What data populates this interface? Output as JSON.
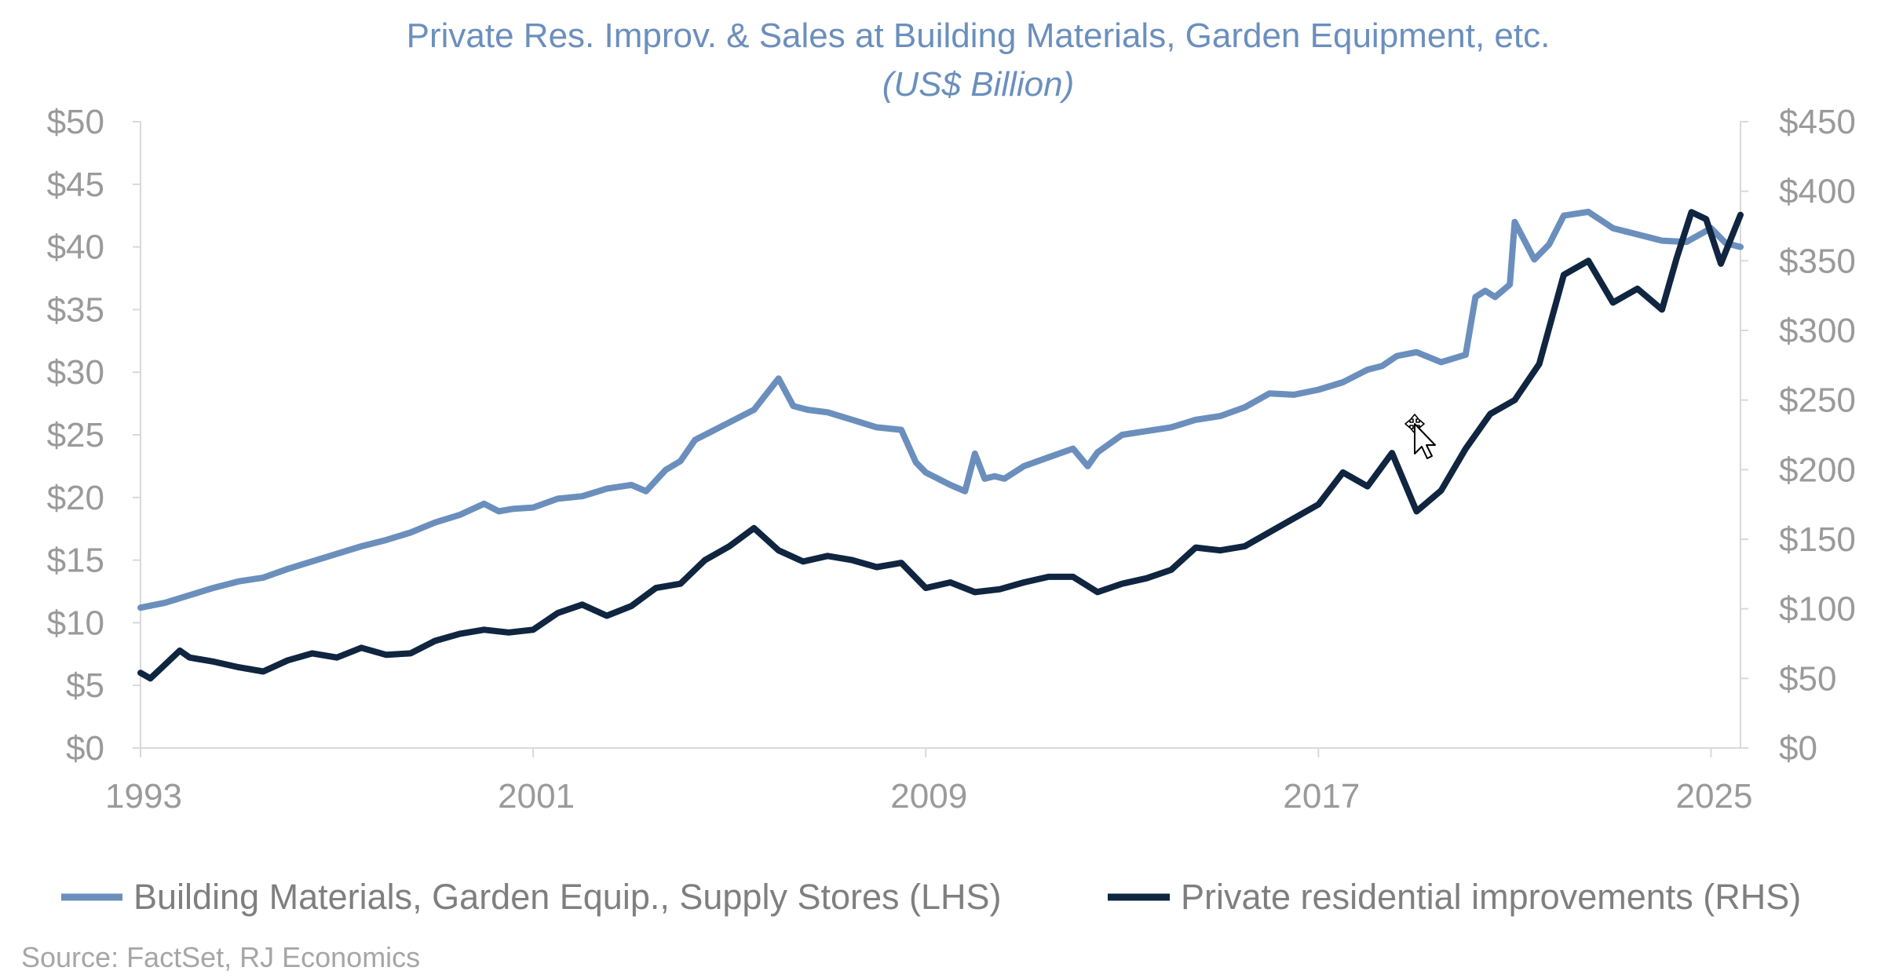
{
  "chart_data": {
    "type": "line",
    "title": "Private Res. Improv. & Sales at Building Materials, Garden Equipment, etc.",
    "subtitle": "(US$ Billion)",
    "source": "Source: FactSet, RJ Economics",
    "x_ticks": [
      "1993",
      "2001",
      "2009",
      "2017",
      "2025"
    ],
    "x_range": [
      1993,
      2025.6
    ],
    "y_left": {
      "ticks": [
        "$0",
        "$5",
        "$10",
        "$15",
        "$20",
        "$25",
        "$30",
        "$35",
        "$40",
        "$45",
        "$50"
      ],
      "range": [
        0,
        50
      ]
    },
    "y_right": {
      "ticks": [
        "$0",
        "$50",
        "$100",
        "$150",
        "$200",
        "$250",
        "$300",
        "$350",
        "$400",
        "$450"
      ],
      "range": [
        0,
        450
      ]
    },
    "grid": false,
    "legend_position": "bottom",
    "colors": {
      "lhs_series": "#6b8fbd",
      "rhs_series": "#0f2540",
      "title": "#6b8fbd",
      "axis_text": "#9a9a9a",
      "axis_line": "#d9d9d9"
    },
    "series": [
      {
        "name": "Building Materials, Garden Equip., Supply Stores (LHS)",
        "axis": "left",
        "x": [
          1993.0,
          1993.5,
          1994.0,
          1994.5,
          1995.0,
          1995.5,
          1996.0,
          1996.5,
          1997.0,
          1997.5,
          1998.0,
          1998.5,
          1999.0,
          1999.5,
          2000.0,
          2000.3,
          2000.6,
          2001.0,
          2001.5,
          2002.0,
          2002.5,
          2003.0,
          2003.3,
          2003.7,
          2004.0,
          2004.3,
          2004.6,
          2005.0,
          2005.5,
          2006.0,
          2006.3,
          2006.6,
          2007.0,
          2007.5,
          2008.0,
          2008.5,
          2008.8,
          2009.0,
          2009.5,
          2009.8,
          2010.0,
          2010.2,
          2010.4,
          2010.6,
          2011.0,
          2011.5,
          2012.0,
          2012.3,
          2012.5,
          2013.0,
          2013.5,
          2014.0,
          2014.5,
          2015.0,
          2015.5,
          2016.0,
          2016.5,
          2017.0,
          2017.5,
          2018.0,
          2018.3,
          2018.6,
          2019.0,
          2019.5,
          2020.0,
          2020.2,
          2020.4,
          2020.6,
          2020.9,
          2021.0,
          2021.2,
          2021.4,
          2021.7,
          2022.0,
          2022.5,
          2023.0,
          2023.5,
          2024.0,
          2024.5,
          2025.0,
          2025.3,
          2025.6
        ],
        "values": [
          11.2,
          11.6,
          12.2,
          12.8,
          13.3,
          13.6,
          14.3,
          14.9,
          15.5,
          16.1,
          16.6,
          17.2,
          18.0,
          18.6,
          19.5,
          18.9,
          19.1,
          19.2,
          19.9,
          20.1,
          20.7,
          21.0,
          20.5,
          22.2,
          22.9,
          24.6,
          25.2,
          26.0,
          27.0,
          29.5,
          27.3,
          27.0,
          26.8,
          26.2,
          25.6,
          25.4,
          22.8,
          22.0,
          21.0,
          20.5,
          23.5,
          21.5,
          21.7,
          21.5,
          22.5,
          23.2,
          23.9,
          22.5,
          23.6,
          25.0,
          25.3,
          25.6,
          26.2,
          26.5,
          27.2,
          28.3,
          28.2,
          28.6,
          29.2,
          30.2,
          30.5,
          31.3,
          31.6,
          30.8,
          31.4,
          36.0,
          36.5,
          36.0,
          37.0,
          42.0,
          40.5,
          39.0,
          40.2,
          42.5,
          42.8,
          41.5,
          41.0,
          40.5,
          40.4,
          41.5,
          40.3,
          40.0
        ]
      },
      {
        "name": "Private residential improvements (RHS)",
        "axis": "right",
        "x": [
          1993.0,
          1993.2,
          1993.5,
          1993.8,
          1994.0,
          1994.5,
          1995.0,
          1995.5,
          1996.0,
          1996.5,
          1997.0,
          1997.5,
          1998.0,
          1998.5,
          1999.0,
          1999.5,
          2000.0,
          2000.5,
          2001.0,
          2001.5,
          2002.0,
          2002.5,
          2003.0,
          2003.5,
          2004.0,
          2004.5,
          2005.0,
          2005.5,
          2006.0,
          2006.5,
          2007.0,
          2007.5,
          2008.0,
          2008.5,
          2009.0,
          2009.5,
          2010.0,
          2010.5,
          2011.0,
          2011.5,
          2012.0,
          2012.5,
          2013.0,
          2013.5,
          2014.0,
          2014.5,
          2015.0,
          2015.5,
          2016.0,
          2016.5,
          2017.0,
          2017.5,
          2018.0,
          2018.5,
          2019.0,
          2019.5,
          2020.0,
          2020.5,
          2021.0,
          2021.5,
          2022.0,
          2022.5,
          2023.0,
          2023.5,
          2024.0,
          2024.3,
          2024.6,
          2024.9,
          2025.2,
          2025.6
        ],
        "values": [
          54,
          50,
          60,
          70,
          65,
          62,
          58,
          55,
          63,
          68,
          65,
          72,
          67,
          68,
          77,
          82,
          85,
          83,
          85,
          97,
          103,
          95,
          102,
          115,
          118,
          135,
          145,
          158,
          142,
          134,
          138,
          135,
          130,
          133,
          115,
          119,
          112,
          114,
          119,
          123,
          123,
          112,
          118,
          122,
          128,
          144,
          142,
          145,
          155,
          165,
          175,
          198,
          188,
          212,
          170,
          185,
          215,
          240,
          250,
          276,
          340,
          350,
          320,
          330,
          315,
          352,
          385,
          380,
          348,
          383
        ]
      }
    ]
  }
}
